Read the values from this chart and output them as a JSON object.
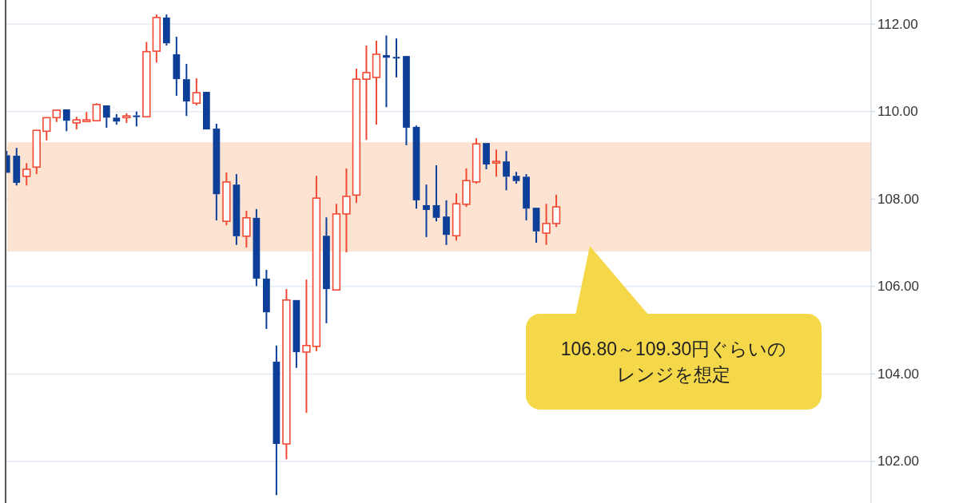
{
  "chart_data": {
    "type": "candlestick",
    "categories": [
      null,
      null,
      null,
      null,
      null,
      null,
      null,
      null,
      null,
      null,
      null,
      null,
      null,
      null,
      null,
      null,
      null,
      null,
      null,
      null,
      null,
      null,
      null,
      null,
      null,
      null,
      null,
      null,
      null,
      null,
      null,
      null,
      null,
      null,
      null,
      null,
      null,
      null,
      null,
      null,
      null,
      null,
      null,
      null,
      null,
      null,
      null,
      null,
      null,
      null,
      null,
      null,
      null,
      null,
      null,
      null,
      null,
      null,
      null,
      null,
      null,
      null,
      null,
      null,
      null,
      null,
      null,
      null,
      null,
      null,
      null,
      null,
      null,
      null,
      null,
      null,
      null,
      null,
      null,
      null,
      null,
      null,
      null,
      null,
      null,
      null,
      null
    ],
    "ohlc": [
      [
        109.0,
        109.1,
        108.6,
        108.6
      ],
      [
        108.99,
        109.17,
        108.31,
        108.37
      ],
      [
        108.52,
        108.82,
        108.31,
        108.68
      ],
      [
        108.73,
        109.57,
        108.57,
        109.57
      ],
      [
        109.55,
        109.86,
        109.34,
        109.86
      ],
      [
        109.86,
        110.03,
        109.76,
        110.03
      ],
      [
        110.05,
        110.05,
        109.55,
        109.79
      ],
      [
        109.74,
        109.88,
        109.59,
        109.81
      ],
      [
        109.77,
        109.99,
        109.76,
        109.81
      ],
      [
        109.79,
        110.19,
        109.79,
        110.16
      ],
      [
        110.14,
        110.14,
        109.63,
        109.86
      ],
      [
        109.86,
        109.94,
        109.7,
        109.77
      ],
      [
        109.86,
        109.96,
        109.74,
        109.9
      ],
      [
        109.91,
        110.0,
        109.66,
        109.88
      ],
      [
        109.88,
        111.59,
        109.88,
        111.37
      ],
      [
        111.38,
        112.22,
        111.12,
        112.15
      ],
      [
        112.15,
        112.22,
        111.51,
        111.56
      ],
      [
        111.31,
        111.71,
        110.36,
        110.74
      ],
      [
        110.74,
        111.09,
        109.9,
        110.23
      ],
      [
        110.19,
        110.76,
        110.14,
        110.43
      ],
      [
        110.45,
        110.45,
        109.59,
        109.59
      ],
      [
        109.61,
        109.72,
        107.51,
        108.11
      ],
      [
        107.49,
        108.61,
        107.4,
        108.39
      ],
      [
        108.33,
        108.57,
        106.95,
        107.15
      ],
      [
        107.15,
        107.73,
        106.89,
        107.57
      ],
      [
        107.57,
        107.77,
        106.01,
        106.18
      ],
      [
        106.18,
        106.38,
        105.03,
        105.41
      ],
      [
        104.28,
        104.65,
        101.23,
        102.4
      ],
      [
        102.4,
        105.94,
        102.05,
        105.69
      ],
      [
        105.69,
        105.69,
        104.14,
        104.5
      ],
      [
        104.5,
        106.16,
        103.11,
        104.65
      ],
      [
        104.63,
        108.53,
        104.52,
        108.02
      ],
      [
        107.16,
        107.58,
        105.16,
        105.94
      ],
      [
        105.92,
        107.89,
        105.92,
        107.66
      ],
      [
        107.66,
        108.7,
        106.78,
        108.06
      ],
      [
        108.09,
        110.98,
        107.91,
        110.74
      ],
      [
        110.74,
        111.51,
        109.35,
        110.89
      ],
      [
        110.78,
        111.62,
        109.7,
        111.31
      ],
      [
        111.29,
        111.74,
        110.1,
        111.23
      ],
      [
        111.25,
        111.67,
        110.78,
        111.23
      ],
      [
        111.27,
        111.27,
        109.23,
        109.63
      ],
      [
        109.65,
        109.68,
        107.78,
        107.97
      ],
      [
        107.86,
        108.33,
        107.13,
        107.75
      ],
      [
        107.86,
        108.77,
        107.49,
        107.57
      ],
      [
        107.6,
        107.97,
        106.95,
        107.18
      ],
      [
        107.16,
        108.13,
        107.05,
        107.89
      ],
      [
        107.88,
        108.7,
        107.82,
        108.42
      ],
      [
        108.39,
        109.39,
        108.35,
        109.26
      ],
      [
        109.28,
        109.28,
        108.68,
        108.79
      ],
      [
        108.84,
        109.13,
        108.51,
        108.86
      ],
      [
        108.86,
        109.1,
        108.2,
        108.51
      ],
      [
        108.53,
        108.62,
        108.35,
        108.41
      ],
      [
        108.51,
        108.57,
        107.51,
        107.78
      ],
      [
        107.8,
        107.8,
        107.0,
        107.26
      ],
      [
        107.22,
        107.89,
        106.95,
        107.44
      ],
      [
        107.44,
        108.1,
        107.36,
        107.82
      ],
      null,
      null,
      null,
      null,
      null,
      null,
      null,
      null,
      null,
      null,
      null,
      null,
      null,
      null,
      null,
      null,
      null,
      null,
      null,
      null,
      null,
      null,
      null,
      null,
      null,
      null,
      null,
      null,
      null,
      null,
      null
    ],
    "colors": [
      "#0d3f98",
      "#0d3f98",
      "#f04a34",
      "#f04a34",
      "#f04a34",
      "#f04a34",
      "#0d3f98",
      "#f04a34",
      "#f04a34",
      "#f04a34",
      "#0d3f98",
      "#0d3f98",
      "#f04a34",
      "#0d3f98",
      "#f04a34",
      "#f04a34",
      "#0d3f98",
      "#0d3f98",
      "#0d3f98",
      "#f04a34",
      "#0d3f98",
      "#0d3f98",
      "#f04a34",
      "#0d3f98",
      "#f04a34",
      "#0d3f98",
      "#0d3f98",
      "#0d3f98",
      "#f04a34",
      "#0d3f98",
      "#f04a34",
      "#f04a34",
      "#0d3f98",
      "#f04a34",
      "#f04a34",
      "#f04a34",
      "#f04a34",
      "#f04a34",
      "#0d3f98",
      "#0d3f98",
      "#0d3f98",
      "#0d3f98",
      "#0d3f98",
      "#0d3f98",
      "#0d3f98",
      "#f04a34",
      "#f04a34",
      "#f04a34",
      "#0d3f98",
      "#f04a34",
      "#0d3f98",
      "#0d3f98",
      "#0d3f98",
      "#0d3f98",
      "#f04a34",
      "#f04a34",
      null,
      null,
      null,
      null,
      null,
      null,
      null,
      null,
      null,
      null,
      null,
      null,
      null,
      null,
      null,
      null,
      null,
      null,
      null,
      null,
      null,
      null,
      null,
      null,
      null,
      null,
      null,
      null,
      null,
      null,
      null
    ],
    "ylim": [
      101.05,
      112.55
    ],
    "yticks": [
      {
        "value": 102,
        "label": "102.00"
      },
      {
        "value": 104,
        "label": "104.00"
      },
      {
        "value": 106,
        "label": "106.00"
      },
      {
        "value": 108,
        "label": "108.00"
      },
      {
        "value": 110,
        "label": "110.00"
      },
      {
        "value": 112,
        "label": "112.00"
      }
    ],
    "grid": "y",
    "bands": [
      {
        "axis": "y",
        "from": 106.8,
        "to": 109.3,
        "color": "#fddfca"
      }
    ],
    "annotations": [
      "106.80～109.30円ぐらいの",
      "レンジを想定"
    ]
  }
}
